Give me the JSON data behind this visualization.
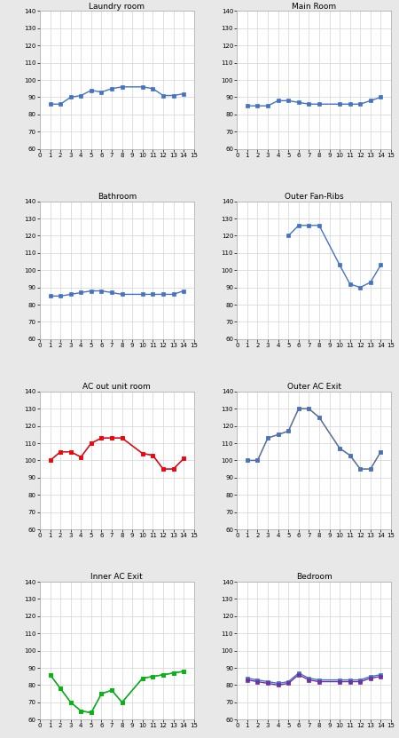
{
  "charts": [
    {
      "title": "Laundry room",
      "series": [
        {
          "color": "#4472C4",
          "x": [
            1,
            2,
            3,
            4,
            5,
            6,
            7,
            8,
            10,
            11,
            12,
            13,
            14
          ],
          "y": [
            86,
            86,
            90,
            91,
            94,
            93,
            95,
            96,
            96,
            95,
            91,
            91,
            92
          ]
        }
      ]
    },
    {
      "title": "Main Room",
      "series": [
        {
          "color": "#4472C4",
          "x": [
            1,
            2,
            3,
            4,
            5,
            6,
            7,
            8,
            10,
            11,
            12,
            13,
            14
          ],
          "y": [
            85,
            85,
            85,
            88,
            88,
            87,
            86,
            86,
            86,
            86,
            86,
            88,
            90
          ]
        }
      ]
    },
    {
      "title": "Bathroom",
      "series": [
        {
          "color": "#4472C4",
          "x": [
            1,
            2,
            3,
            4,
            5,
            6,
            7,
            8,
            10,
            11,
            12,
            13,
            14
          ],
          "y": [
            85,
            85,
            86,
            87,
            88,
            88,
            87,
            86,
            86,
            86,
            86,
            86,
            88
          ]
        }
      ]
    },
    {
      "title": "Outer Fan-Ribs",
      "series": [
        {
          "color": "#4472C4",
          "x": [
            5,
            6,
            7,
            8,
            10,
            11,
            12,
            13,
            14
          ],
          "y": [
            120,
            126,
            126,
            126,
            103,
            92,
            90,
            93,
            103
          ]
        }
      ]
    },
    {
      "title": "AC out unit room",
      "series": [
        {
          "color": "#4472C4",
          "x": [
            1,
            2,
            3,
            4,
            5,
            6,
            7,
            8,
            10,
            11,
            12,
            13,
            14
          ],
          "y": [
            100,
            105,
            105,
            102,
            110,
            113,
            113,
            113,
            104,
            103,
            95,
            95,
            101
          ]
        },
        {
          "color": "#FF0000",
          "x": [
            1,
            2,
            3,
            4,
            5,
            6,
            7,
            8,
            10,
            11,
            12,
            13,
            14
          ],
          "y": [
            100,
            105,
            105,
            102,
            110,
            113,
            113,
            113,
            104,
            103,
            95,
            95,
            101
          ]
        }
      ]
    },
    {
      "title": "Outer AC Exit",
      "series": [
        {
          "color": "#FFA500",
          "x": [
            1,
            2,
            3,
            4,
            5,
            6,
            7,
            8,
            10,
            11,
            12,
            13,
            14
          ],
          "y": [
            100,
            100,
            113,
            115,
            117,
            130,
            130,
            125,
            107,
            103,
            95,
            95,
            105
          ]
        },
        {
          "color": "#4472C4",
          "x": [
            1,
            2,
            3,
            4,
            5,
            6,
            7,
            8,
            10,
            11,
            12,
            13,
            14
          ],
          "y": [
            100,
            100,
            113,
            115,
            117,
            130,
            130,
            125,
            107,
            103,
            95,
            95,
            105
          ]
        }
      ]
    },
    {
      "title": "Inner AC Exit",
      "series": [
        {
          "color": "#4472C4",
          "x": [
            1,
            2,
            3,
            4,
            5,
            6,
            7,
            8,
            10,
            11,
            12,
            13,
            14
          ],
          "y": [
            86,
            78,
            70,
            65,
            64,
            75,
            77,
            70,
            84,
            85,
            86,
            87,
            88
          ]
        },
        {
          "color": "#00BB00",
          "x": [
            1,
            2,
            3,
            4,
            5,
            6,
            7,
            8,
            10,
            11,
            12,
            13,
            14
          ],
          "y": [
            86,
            78,
            70,
            65,
            64,
            75,
            77,
            70,
            84,
            85,
            86,
            87,
            88
          ]
        }
      ]
    },
    {
      "title": "Bedroom",
      "series": [
        {
          "color": "#4472C4",
          "x": [
            1,
            2,
            3,
            4,
            5,
            6,
            7,
            8,
            10,
            11,
            12,
            13,
            14
          ],
          "y": [
            84,
            83,
            82,
            81,
            82,
            87,
            84,
            83,
            83,
            83,
            83,
            85,
            86
          ]
        },
        {
          "color": "#7030A0",
          "x": [
            1,
            2,
            3,
            4,
            5,
            6,
            7,
            8,
            10,
            11,
            12,
            13,
            14
          ],
          "y": [
            83,
            82,
            81,
            80,
            81,
            86,
            83,
            82,
            82,
            82,
            82,
            84,
            85
          ]
        }
      ]
    }
  ],
  "ylim": [
    60,
    140
  ],
  "yticks": [
    60,
    70,
    80,
    90,
    100,
    110,
    120,
    130,
    140
  ],
  "xlim": [
    0,
    15
  ],
  "xticks": [
    0,
    1,
    2,
    3,
    4,
    5,
    6,
    7,
    8,
    9,
    10,
    11,
    12,
    13,
    14,
    15
  ],
  "grid_color": "#D3D3D3",
  "bg_color": "#FFFFFF",
  "panel_bg": "#F5F5F5",
  "marker": "s",
  "markersize": 2.5,
  "linewidth": 1.0
}
